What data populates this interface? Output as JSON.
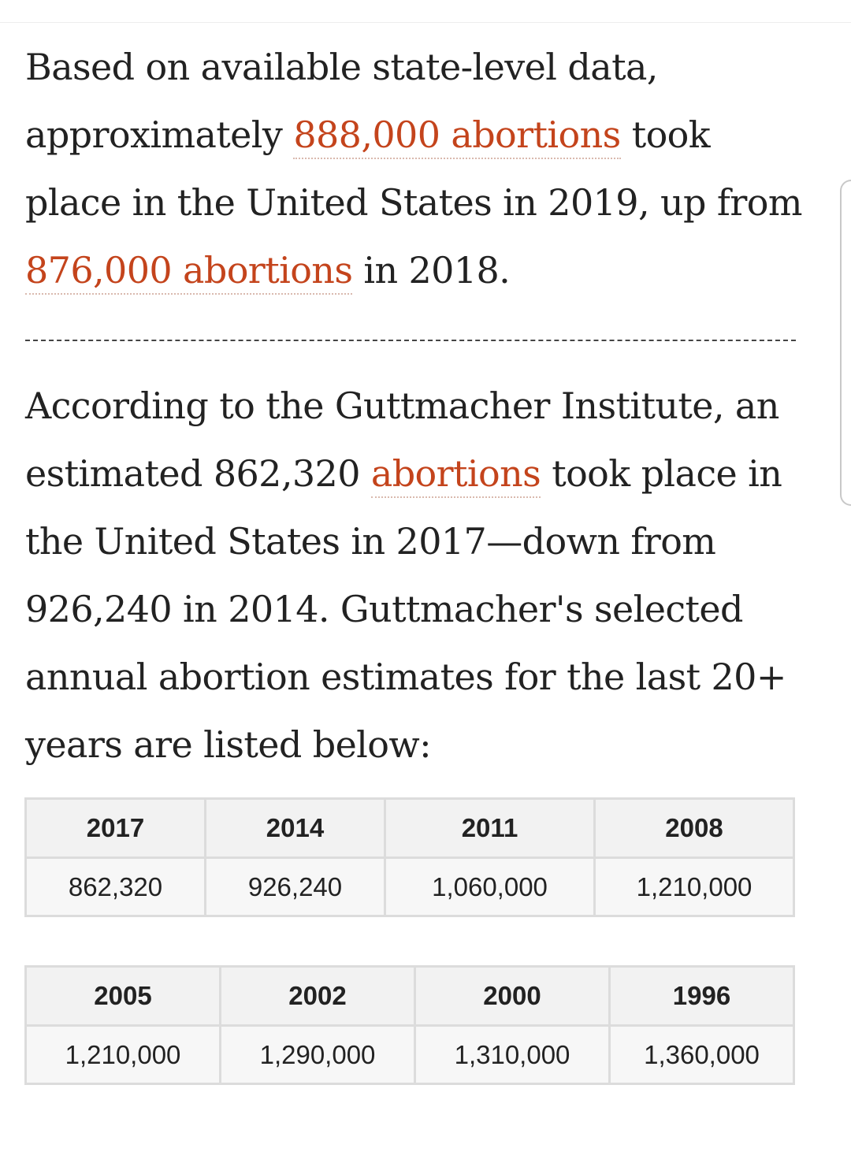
{
  "paragraph1": {
    "before": "Based on available state-level data, approximately ",
    "link1": "888,000 abortions",
    "middle": " took place in the United States in 2019, up from ",
    "link2": "876,000 abortions",
    "after": " in 2018."
  },
  "paragraph2": {
    "before": "According to the Guttmacher Institute, an estimated 862,320 ",
    "link": "abortions",
    "after": " took place in the United States in 2017—down from 926,240 in 2014. Guttmacher's selected annual abortion estimates for the last 20+ years are listed below:"
  },
  "table1": {
    "years": [
      "2017",
      "2014",
      "2011",
      "2008"
    ],
    "values": [
      "862,320",
      "926,240",
      "1,060,000",
      "1,210,000"
    ]
  },
  "table2": {
    "years": [
      "2005",
      "2002",
      "2000",
      "1996"
    ],
    "values": [
      "1,210,000",
      "1,290,000",
      "1,310,000",
      "1,360,000"
    ]
  },
  "colors": {
    "link": "#c4441c",
    "header_bg": "#f2f2f2",
    "border": "#dcdcdc"
  }
}
